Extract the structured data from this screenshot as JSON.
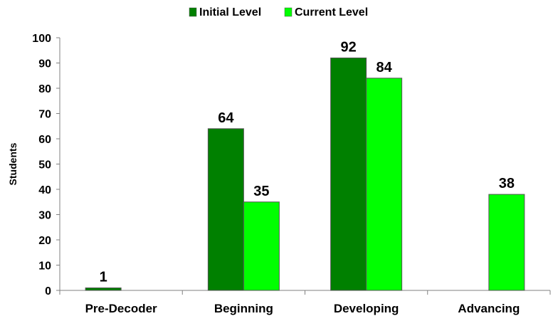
{
  "chart_data": {
    "type": "bar",
    "title": "",
    "xlabel": "",
    "ylabel": "Students",
    "ylim": [
      0,
      100
    ],
    "yticks": [
      0,
      10,
      20,
      30,
      40,
      50,
      60,
      70,
      80,
      90,
      100
    ],
    "grid": false,
    "legend_position": "top-center",
    "categories": [
      "Pre-Decoder",
      "Beginning",
      "Developing",
      "Advancing"
    ],
    "series": [
      {
        "name": "Initial Level",
        "color": "#008000",
        "values": [
          1,
          64,
          92,
          0
        ],
        "labels": [
          "1",
          "64",
          "92",
          ""
        ]
      },
      {
        "name": "Current Level",
        "color": "#00ff00",
        "values": [
          0,
          35,
          84,
          38
        ],
        "labels": [
          "",
          "35",
          "84",
          "38"
        ]
      }
    ]
  }
}
